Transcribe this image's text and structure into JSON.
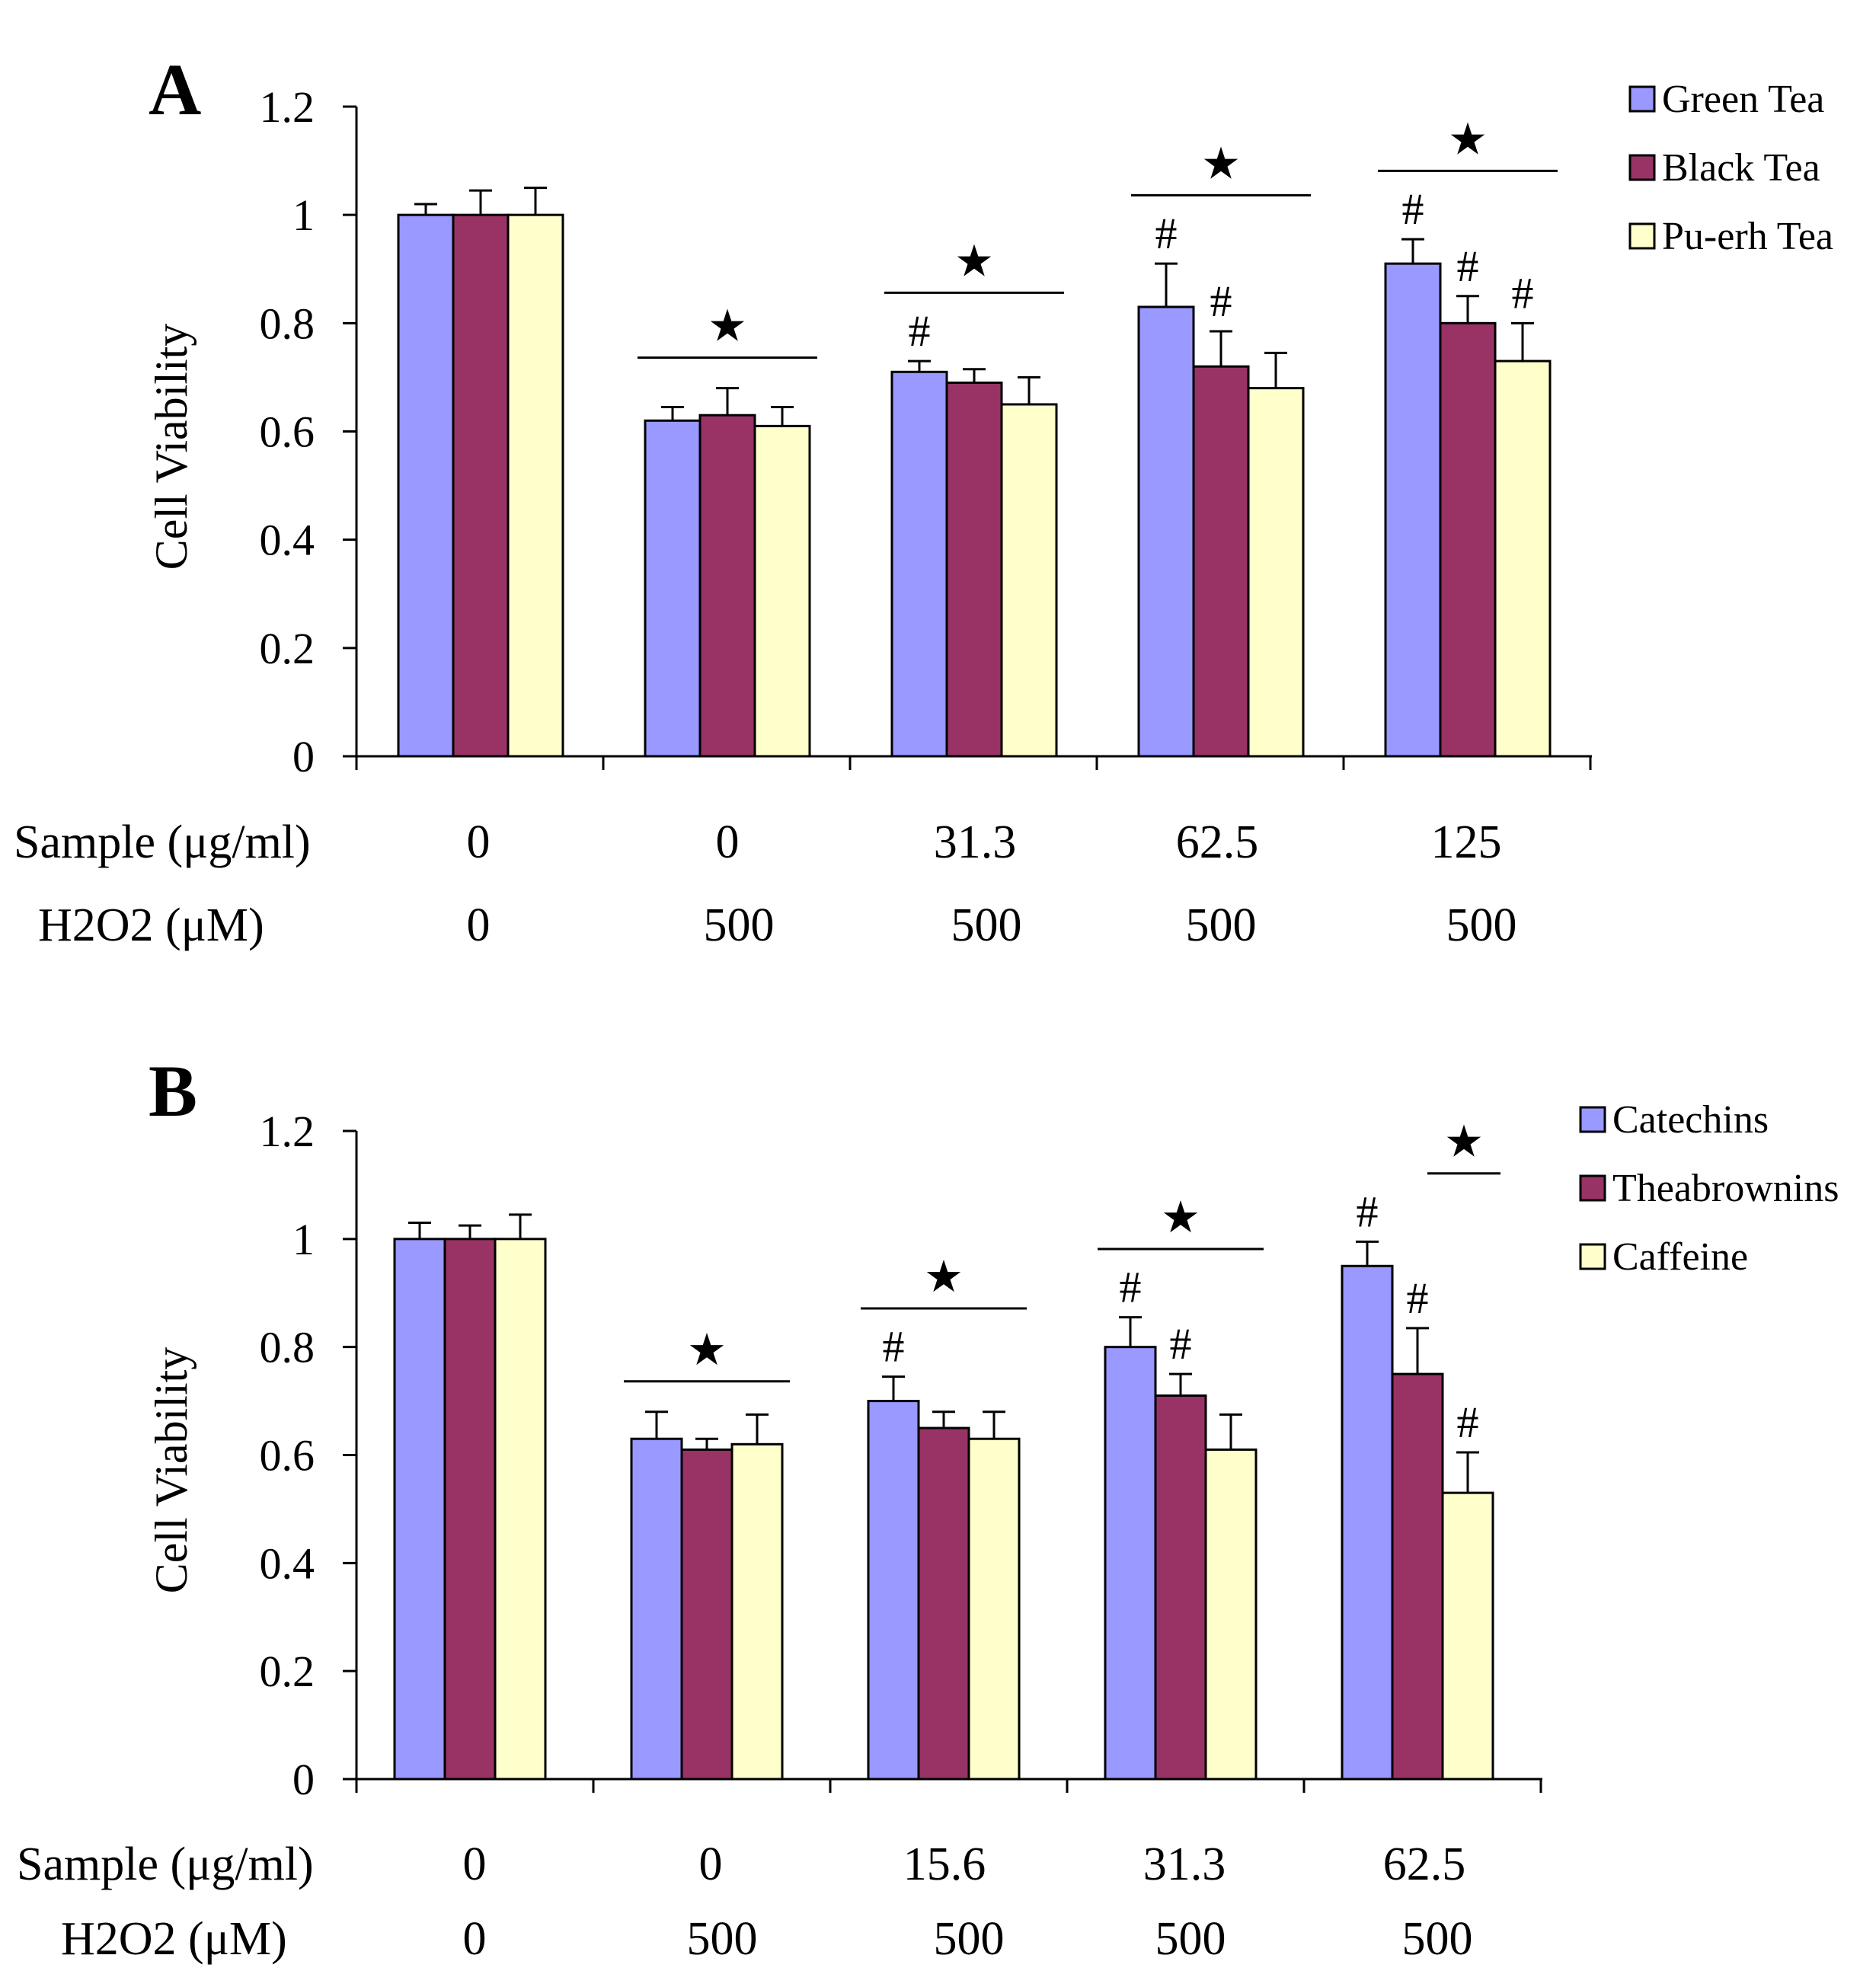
{
  "colors": {
    "series1": "#9999ff",
    "series2": "#993366",
    "series3": "#ffffcc",
    "edge": "#000000"
  },
  "chart_data": [
    {
      "panel": "A",
      "type": "bar",
      "ylabel": "Cell Viability",
      "ylim": [
        0,
        1.2
      ],
      "yticks": [
        "0",
        "0.2",
        "0.4",
        "0.6",
        "0.8",
        "1",
        "1.2"
      ],
      "legend_position": "top-right",
      "series": [
        {
          "name": "Green Tea",
          "values": [
            1.0,
            0.62,
            0.71,
            0.83,
            0.91
          ],
          "errors": [
            0.02,
            0.025,
            0.02,
            0.08,
            0.045
          ]
        },
        {
          "name": "Black Tea",
          "values": [
            1.0,
            0.63,
            0.69,
            0.72,
            0.8
          ],
          "errors": [
            0.045,
            0.05,
            0.025,
            0.065,
            0.05
          ]
        },
        {
          "name": "Pu-erh Tea",
          "values": [
            1.0,
            0.61,
            0.65,
            0.68,
            0.73
          ],
          "errors": [
            0.05,
            0.035,
            0.05,
            0.065,
            0.07
          ]
        }
      ],
      "conditions": [
        {
          "label": "Sample (μg/ml)",
          "values": [
            "0",
            "0",
            "31.3",
            "62.5",
            "125"
          ]
        },
        {
          "label": "H2O2 (μM)",
          "values": [
            "0",
            "500",
            "500",
            "500",
            "500"
          ]
        }
      ],
      "group_markers": [
        "",
        "★",
        "★",
        "★",
        "★"
      ],
      "hash_markers": [
        [
          "",
          "",
          ""
        ],
        [
          "",
          "",
          ""
        ],
        [
          "#",
          "",
          ""
        ],
        [
          "#",
          "#",
          ""
        ],
        [
          "#",
          "#",
          "#"
        ]
      ]
    },
    {
      "panel": "B",
      "type": "bar",
      "ylabel": "Cell Viability",
      "ylim": [
        0,
        1.2
      ],
      "yticks": [
        "0",
        "0.2",
        "0.4",
        "0.6",
        "0.8",
        "1",
        "1.2"
      ],
      "legend_position": "top-right",
      "series": [
        {
          "name": "Catechins",
          "values": [
            1.0,
            0.63,
            0.7,
            0.8,
            0.95
          ],
          "errors": [
            0.03,
            0.05,
            0.045,
            0.055,
            0.045
          ]
        },
        {
          "name": "Theabrownins",
          "values": [
            1.0,
            0.61,
            0.65,
            0.71,
            0.75
          ],
          "errors": [
            0.025,
            0.02,
            0.03,
            0.04,
            0.085
          ]
        },
        {
          "name": "Caffeine",
          "values": [
            1.0,
            0.62,
            0.63,
            0.61,
            0.53
          ],
          "errors": [
            0.045,
            0.055,
            0.05,
            0.065,
            0.075
          ]
        }
      ],
      "conditions": [
        {
          "label": "Sample (μg/ml)",
          "values": [
            "0",
            "0",
            "15.6",
            "31.3",
            "62.5"
          ]
        },
        {
          "label": "H2O2 (μM)",
          "values": [
            "0",
            "500",
            "500",
            "500",
            "500"
          ]
        }
      ],
      "group_markers": [
        "",
        "★",
        "★",
        "★",
        "★"
      ],
      "hash_markers": [
        [
          "",
          "",
          ""
        ],
        [
          "",
          "",
          ""
        ],
        [
          "#",
          "",
          ""
        ],
        [
          "#",
          "#",
          ""
        ],
        [
          "#",
          "#",
          "#"
        ]
      ]
    }
  ]
}
